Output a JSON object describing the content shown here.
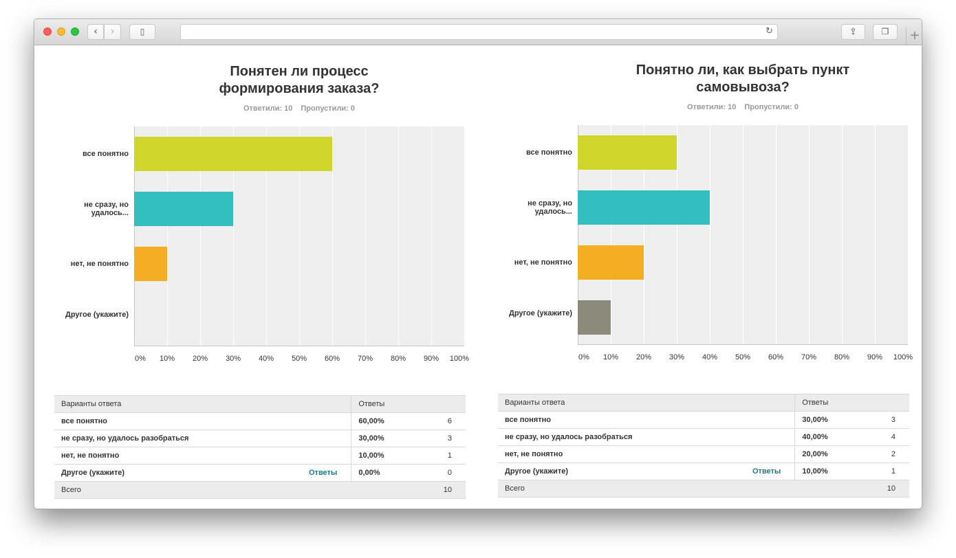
{
  "browser": {
    "url": "",
    "icons": {
      "back": "chevron-left-icon",
      "forward": "chevron-right-icon",
      "sidebar": "sidebar-icon",
      "reload": "reload-icon",
      "share": "share-icon",
      "tabs": "tabs-icon",
      "new_tab": "plus-icon"
    }
  },
  "colors": {
    "bar_1": "#d0d52a",
    "bar_2": "#33bec0",
    "bar_3": "#f5ad22",
    "bar_4": "#8b8a7b",
    "plot_bg": "#efefef",
    "link": "#1f7a8a"
  },
  "chart_data": [
    {
      "type": "bar",
      "orientation": "horizontal",
      "title": "Понятен ли процесс формирования заказа?",
      "stats": {
        "answered_label": "Ответили: 10",
        "skipped_label": "Пропустили: 0"
      },
      "categories": [
        "все понятно",
        "не сразу, но удалось...",
        "нет, не понятно",
        "Другое (укажите)"
      ],
      "values": [
        60,
        30,
        10,
        0
      ],
      "xlim": [
        0,
        100
      ],
      "x_ticks": [
        "0%",
        "10%",
        "20%",
        "30%",
        "40%",
        "50%",
        "60%",
        "70%",
        "80%",
        "90%",
        "100%"
      ],
      "grid": true,
      "table": {
        "headers": {
          "option": "Варианты ответа",
          "answers": "Ответы"
        },
        "rows": [
          {
            "label": "все понятно",
            "link": "",
            "percent": "60,00%",
            "count": "6"
          },
          {
            "label": "не сразу, но удалось разобраться",
            "link": "",
            "percent": "30,00%",
            "count": "3"
          },
          {
            "label": "нет, не понятно",
            "link": "",
            "percent": "10,00%",
            "count": "1"
          },
          {
            "label": "Другое (укажите)",
            "link": "Ответы",
            "percent": "0,00%",
            "count": "0"
          }
        ],
        "total_label": "Всего",
        "total": "10"
      }
    },
    {
      "type": "bar",
      "orientation": "horizontal",
      "title": "Понятно ли, как выбрать пункт самовывоза?",
      "stats": {
        "answered_label": "Ответили: 10",
        "skipped_label": "Пропустили: 0"
      },
      "categories": [
        "все понятно",
        "не сразу, но удалось...",
        "нет, не понятно",
        "Другое (укажите)"
      ],
      "values": [
        30,
        40,
        20,
        10
      ],
      "xlim": [
        0,
        100
      ],
      "x_ticks": [
        "0%",
        "10%",
        "20%",
        "30%",
        "40%",
        "50%",
        "60%",
        "70%",
        "80%",
        "90%",
        "100%"
      ],
      "grid": true,
      "table": {
        "headers": {
          "option": "Варианты ответа",
          "answers": "Ответы"
        },
        "rows": [
          {
            "label": "все понятно",
            "link": "",
            "percent": "30,00%",
            "count": "3"
          },
          {
            "label": "не сразу, но удалось разобраться",
            "link": "",
            "percent": "40,00%",
            "count": "4"
          },
          {
            "label": "нет, не понятно",
            "link": "",
            "percent": "20,00%",
            "count": "2"
          },
          {
            "label": "Другое (укажите)",
            "link": "Ответы",
            "percent": "10,00%",
            "count": "1"
          }
        ],
        "total_label": "Всего",
        "total": "10"
      }
    }
  ]
}
